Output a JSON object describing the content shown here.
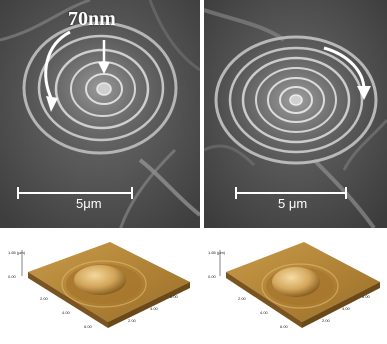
{
  "panels": {
    "top_left": {
      "size_label": "70nm",
      "scale_bar_label": "5μm"
    },
    "top_right": {
      "scale_bar_label": "5 μm"
    },
    "bottom_left": {
      "z_axis_label": "1.65 (µm)",
      "z_axis_zero": "0.00",
      "x_ticks": [
        "2.00",
        "4.00",
        "6.00"
      ],
      "y_ticks": [
        "2.00",
        "4.00",
        "6.00"
      ]
    },
    "bottom_right": {
      "z_axis_label": "1.65 (µm)",
      "z_axis_zero": "0.00",
      "x_ticks": [
        "2.00",
        "4.00",
        "6.00"
      ],
      "y_ticks": [
        "2.00",
        "4.00",
        "6.00"
      ]
    }
  },
  "colors": {
    "sem_background": "#5e5e5e",
    "afm_surface": "#b88a3a",
    "afm_dome": "#d7ad64"
  }
}
